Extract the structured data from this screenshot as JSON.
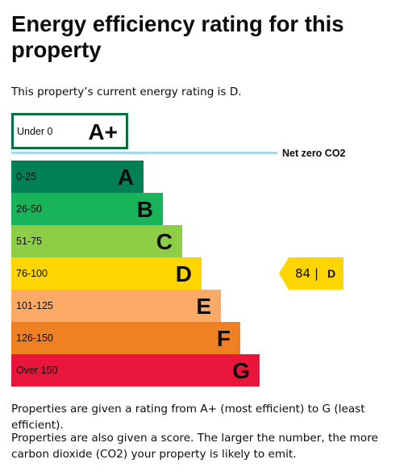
{
  "heading": "Energy efficiency rating for this property",
  "current_rating_text": "This property’s current energy rating is D.",
  "net_zero_label": "Net zero CO2",
  "current": {
    "score": "84",
    "separator": "|",
    "letter": "D",
    "color": "#ffd500"
  },
  "ratings": [
    {
      "range": "Under 0",
      "letter": "A+",
      "color": "#ffffff",
      "border": "#00703c"
    },
    {
      "range": "0-25",
      "letter": "A",
      "color": "#008054"
    },
    {
      "range": "26-50",
      "letter": "B",
      "color": "#19b459"
    },
    {
      "range": "51-75",
      "letter": "C",
      "color": "#8dce46"
    },
    {
      "range": "76-100",
      "letter": "D",
      "color": "#ffd500"
    },
    {
      "range": "101-125",
      "letter": "E",
      "color": "#fcaa65"
    },
    {
      "range": "126-150",
      "letter": "F",
      "color": "#ef8023"
    },
    {
      "range": "Over 150",
      "letter": "G",
      "color": "#e9153b"
    }
  ],
  "paragraphs": [
    "Properties are given a rating from A+ (most efficient) to G (least efficient).",
    "Properties are also given a score. The larger the number, the more carbon dioxide (CO2) your property is likely to emit."
  ]
}
